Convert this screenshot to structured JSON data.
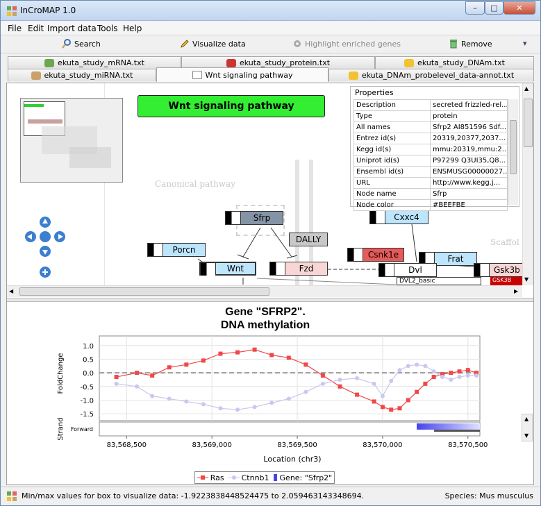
{
  "window": {
    "title": "InCroMAP 1.0",
    "minimize": "–",
    "maximize": "□",
    "close": "✕"
  },
  "menu": [
    "File",
    "Edit",
    "Import data",
    "Tools",
    "Help"
  ],
  "toolbar": {
    "search": "Search",
    "visualize": "Visualize data",
    "highlight": "Highlight enriched genes",
    "remove": "Remove"
  },
  "tabs": {
    "row1": [
      {
        "label": "ekuta_study_mRNA.txt",
        "color": "#6aa84f"
      },
      {
        "label": "ekuta_study_protein.txt",
        "color": "#cc3333"
      },
      {
        "label": "ekuta_study_DNAm.txt",
        "color": "#f1c232"
      }
    ],
    "row2": [
      {
        "label": "ekuta_study_miRNA.txt",
        "color": "#c9a26b"
      },
      {
        "label": "Wnt signaling pathway",
        "color": "#888888"
      },
      {
        "label": "ekuta_DNAm_probelevel_data-annot.txt",
        "color": "#f1c232"
      }
    ]
  },
  "pathway": {
    "title": "Wnt signaling pathway",
    "canonical_label": "Canonical pathway",
    "scaffold_label": "Scaffol",
    "nodes": {
      "sfrp": "Sfrp",
      "dally": "DALLY",
      "cxxc4": "Cxxc4",
      "porcn": "Porcn",
      "csnk1e": "Csnk1e",
      "frat": "Frat",
      "wnt": "Wnt",
      "fzd": "Fzd",
      "dvl": "Dvl",
      "gsk3b": "Gsk3b",
      "dvl2": "DVL2_basic",
      "gsk3b_sub": "GSK3B"
    }
  },
  "properties": {
    "title": "Properties",
    "rows": [
      {
        "key": "Description",
        "value": "secreted frizzled-rel..."
      },
      {
        "key": "Type",
        "value": "protein"
      },
      {
        "key": "All names",
        "value": "Sfrp2 AI851596 Sdf..."
      },
      {
        "key": "Entrez id(s)",
        "value": "20319,20377,2037..."
      },
      {
        "key": "Kegg id(s)",
        "value": "mmu:20319,mmu:2..."
      },
      {
        "key": "Uniprot id(s)",
        "value": "P97299 Q3UI35,Q8..."
      },
      {
        "key": "Ensembl id(s)",
        "value": "ENSMUSG00000027..."
      },
      {
        "key": "URL",
        "value": "http://www.kegg.j..."
      },
      {
        "key": "Node name",
        "value": "Sfrp"
      },
      {
        "key": "Node color",
        "value": "#BEEFBE"
      }
    ]
  },
  "chart_data": {
    "type": "line",
    "title": "Gene \"SFRP2\".",
    "subtitle": "DNA methylation",
    "xlabel": "Location (chr3)",
    "ylabel": "FoldChange",
    "strand_label": "Strand",
    "strand_value": "Forward",
    "x_ticks": [
      "83,568,500",
      "83,569,000",
      "83,569,500",
      "83,570,000",
      "83,570,500"
    ],
    "x_tick_values": [
      83568500,
      83569000,
      83569500,
      83570000,
      83570500
    ],
    "y_ticks": [
      "1.0",
      "0.5",
      "0.0",
      "-0.5",
      "-1.0",
      "-1.5"
    ],
    "ylim": [
      -1.75,
      1.35
    ],
    "xlim": [
      83568340,
      83570570
    ],
    "series": [
      {
        "name": "Ras",
        "color": "#f04848",
        "marker": "square",
        "x": [
          83568440,
          83568560,
          83568650,
          83568750,
          83568850,
          83568950,
          83569050,
          83569150,
          83569250,
          83569350,
          83569450,
          83569550,
          83569650,
          83569750,
          83569850,
          83569950,
          83570000,
          83570050,
          83570100,
          83570150,
          83570200,
          83570250,
          83570300,
          83570350,
          83570400,
          83570450,
          83570500,
          83570550
        ],
        "y": [
          -0.15,
          0.0,
          -0.1,
          0.2,
          0.3,
          0.45,
          0.7,
          0.75,
          0.85,
          0.65,
          0.55,
          0.3,
          -0.1,
          -0.5,
          -0.8,
          -1.05,
          -1.25,
          -1.35,
          -1.3,
          -1.0,
          -0.7,
          -0.4,
          -0.15,
          -0.05,
          0.0,
          0.05,
          0.1,
          0.0
        ]
      },
      {
        "name": "Ctnnb1",
        "color": "#c8c8f0",
        "marker": "circle",
        "x": [
          83568440,
          83568560,
          83568650,
          83568750,
          83568850,
          83568950,
          83569050,
          83569150,
          83569250,
          83569350,
          83569450,
          83569550,
          83569650,
          83569750,
          83569850,
          83569950,
          83570000,
          83570050,
          83570100,
          83570150,
          83570200,
          83570250,
          83570300,
          83570350,
          83570400,
          83570450,
          83570500,
          83570550
        ],
        "y": [
          -0.4,
          -0.5,
          -0.85,
          -0.95,
          -1.05,
          -1.15,
          -1.3,
          -1.35,
          -1.25,
          -1.1,
          -0.95,
          -0.7,
          -0.4,
          -0.25,
          -0.2,
          -0.4,
          -0.85,
          -0.3,
          0.1,
          0.25,
          0.3,
          0.25,
          0.05,
          -0.15,
          -0.25,
          -0.15,
          -0.1,
          -0.1
        ]
      }
    ],
    "gene_region": {
      "name": "Gene: \"Sfrp2\"",
      "start": 83570200,
      "end": 83570570,
      "color": "#4444ee"
    },
    "legend": [
      "Ras",
      "Ctnnb1",
      "Gene: \"Sfrp2\""
    ],
    "grid": true
  },
  "status": {
    "left": "Min/max values for box to visualize data: -1.9223838448524475 to 2.059463143348694.",
    "right": "Species: Mus musculus"
  },
  "colors": {
    "accent": "#33cc33",
    "node_blue": "#bde5fb",
    "node_pink": "#f8d6d6",
    "node_red": "#e65a5a",
    "node_gray": "#8494a6"
  }
}
